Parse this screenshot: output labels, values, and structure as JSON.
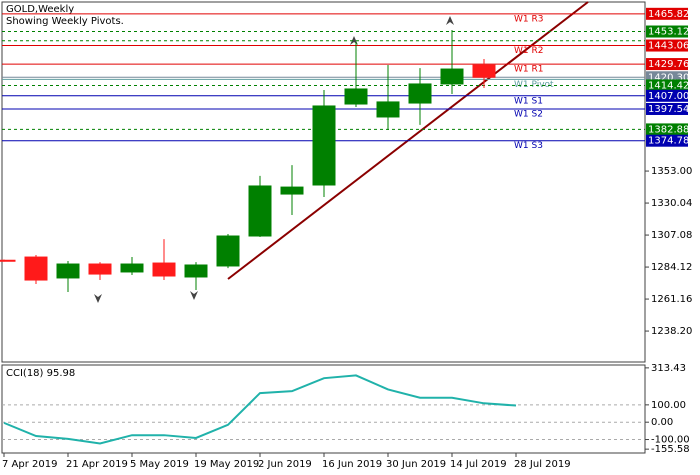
{
  "chart_data": {
    "type": "candlestick",
    "title": "GOLD,Weekly",
    "subtitle": "Showing Weekly Pivots.",
    "categories": [
      "7 Apr 2019",
      null,
      "21 Apr 2019",
      null,
      "5 May 2019",
      null,
      "19 May 2019",
      null,
      "2 Jun 2019",
      null,
      "16 Jun 2019",
      null,
      "30 Jun 2019",
      null,
      "14 Jul 2019",
      null,
      "28 Jul 2019"
    ],
    "open": [
      1289.0,
      1291.3,
      1276.3,
      1286.3,
      1280.6,
      1287.0,
      1277.0,
      1284.9,
      1306.4,
      1336.5,
      1343.0,
      1401.1,
      1391.8,
      1401.8,
      1415.5,
      1429.0,
      null
    ],
    "high": [
      1289.5,
      1292.8,
      1288.5,
      1287.7,
      1291.3,
      1304.2,
      1287.7,
      1307.8,
      1349.5,
      1357.3,
      1411.2,
      1445.6,
      1429.1,
      1426.9,
      1454.2,
      1433.4,
      null
    ],
    "low": [
      1288.0,
      1272.0,
      1266.2,
      1274.8,
      1278.4,
      1274.8,
      1267.7,
      1283.4,
      1305.7,
      1321.5,
      1334.4,
      1399.0,
      1382.5,
      1386.1,
      1408.3,
      1412.6,
      null
    ],
    "close": [
      1288.5,
      1274.8,
      1286.3,
      1279.1,
      1286.3,
      1277.7,
      1285.6,
      1306.4,
      1342.3,
      1341.5,
      1399.7,
      1411.9,
      1402.6,
      1415.5,
      1426.2,
      1420.3,
      null
    ],
    "up_color": "#008000",
    "down_color": "#ff1a1a",
    "ylim": [
      1216,
      1474.3
    ],
    "yticks": [
      {
        "value": 1353,
        "label": "1353.00"
      },
      1330.04,
      1307.08,
      1284.12,
      1261.16,
      {
        "value": 1238.2,
        "label": "1238.20"
      }
    ],
    "levels": [
      {
        "name": "W1 R3",
        "value": 1465.82,
        "color": "#e00000",
        "tag": "1465.82"
      },
      {
        "value": 1453.12,
        "color": "#008000",
        "style": "dash",
        "tag": "1453.12"
      },
      {
        "value": 1446.5,
        "color": "#008000",
        "style": "dash"
      },
      {
        "name": "W1 R2",
        "value": 1443.06,
        "color": "#e00000",
        "tag": "1443.06"
      },
      {
        "name": "W1 R1",
        "value": 1429.76,
        "color": "#e00000",
        "tag": "1429.76"
      },
      {
        "value": 1420.3,
        "color": "#778899",
        "tag": "1420.30"
      },
      {
        "name": "W1 Pivot",
        "value": 1418.8,
        "color": "#5f9ea0"
      },
      {
        "value": 1414.42,
        "color": "#008000",
        "style": "dash",
        "tag": "1414.42"
      },
      {
        "name": "W1 S1",
        "value": 1407.0,
        "color": "#0000b0",
        "tag": "1407.00"
      },
      {
        "name": "W1 S2",
        "value": 1397.54,
        "color": "#0000b0",
        "tag": "1397.54"
      },
      {
        "value": 1382.88,
        "color": "#008000",
        "style": "dash",
        "tag": "1382.88"
      },
      {
        "name": "W1 S3",
        "value": 1374.78,
        "color": "#0000b0",
        "tag": "1374.78"
      }
    ],
    "indicator": {
      "title": "CCI(18) 95.98",
      "color": "#20b2aa",
      "values": [
        -4,
        -80,
        -96,
        -123,
        -75,
        -75,
        -91,
        -15,
        168,
        179,
        254,
        270,
        189,
        141,
        141,
        109,
        95.98
      ],
      "ylim": [
        -172,
        330
      ],
      "yticks": [
        313.43,
        {
          "value": 100,
          "label": "100.00"
        },
        {
          "value": 0,
          "label": "0.00"
        },
        {
          "value": -100,
          "label": "-100.00"
        },
        -155.58
      ],
      "levels": [
        100,
        0,
        -100
      ]
    }
  }
}
